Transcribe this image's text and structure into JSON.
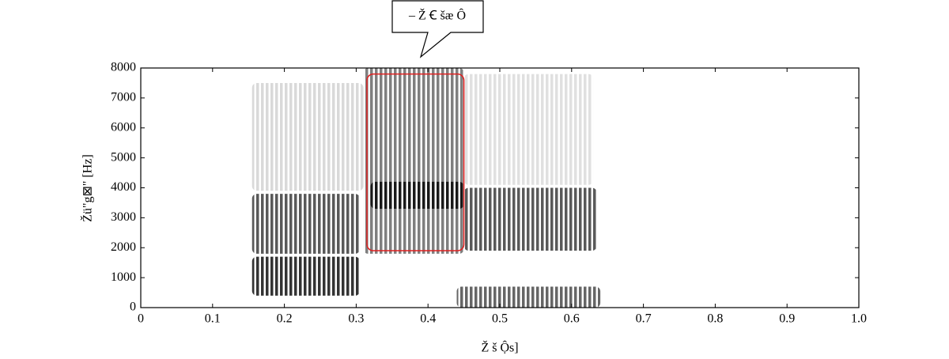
{
  "chart_data": {
    "type": "spectrogram",
    "callout": "– Ž Ꞓ šæ Ô",
    "x_label": "Ž š Ộs]",
    "y_label": "Žü\"g⊠\" [Hz]",
    "xlim": [
      0,
      1.0
    ],
    "ylim": [
      0,
      8000
    ],
    "xticks": [
      0,
      0.1,
      0.2,
      0.3,
      0.4,
      0.5,
      0.6,
      0.7,
      0.8,
      0.9,
      {
        "value": 1.0,
        "label": "1.0"
      }
    ],
    "yticks": [
      0,
      1000,
      2000,
      3000,
      4000,
      5000,
      6000,
      7000,
      8000
    ],
    "color": "#222222",
    "regions": [
      {
        "x": [
          0.155,
          0.305
        ],
        "y": [
          400,
          1700
        ],
        "intensity": 0.8
      },
      {
        "x": [
          0.155,
          0.305
        ],
        "y": [
          1800,
          3800
        ],
        "intensity": 0.65
      },
      {
        "x": [
          0.155,
          0.31
        ],
        "y": [
          3900,
          7500
        ],
        "intensity": 0.15
      },
      {
        "x": [
          0.31,
          0.45
        ],
        "y": [
          1800,
          8000
        ],
        "intensity": 0.5
      },
      {
        "x": [
          0.32,
          0.45
        ],
        "y": [
          3300,
          4200
        ],
        "intensity": 0.8
      },
      {
        "x": [
          0.45,
          0.635
        ],
        "y": [
          1900,
          4000
        ],
        "intensity": 0.65
      },
      {
        "x": [
          0.45,
          0.63
        ],
        "y": [
          4100,
          7800
        ],
        "intensity": 0.12
      },
      {
        "x": [
          0.44,
          0.64
        ],
        "y": [
          0,
          700
        ],
        "intensity": 0.6
      }
    ],
    "highlight": {
      "x": [
        0.315,
        0.45
      ],
      "y": [
        1900,
        7800
      ],
      "color": "#e02020"
    }
  }
}
